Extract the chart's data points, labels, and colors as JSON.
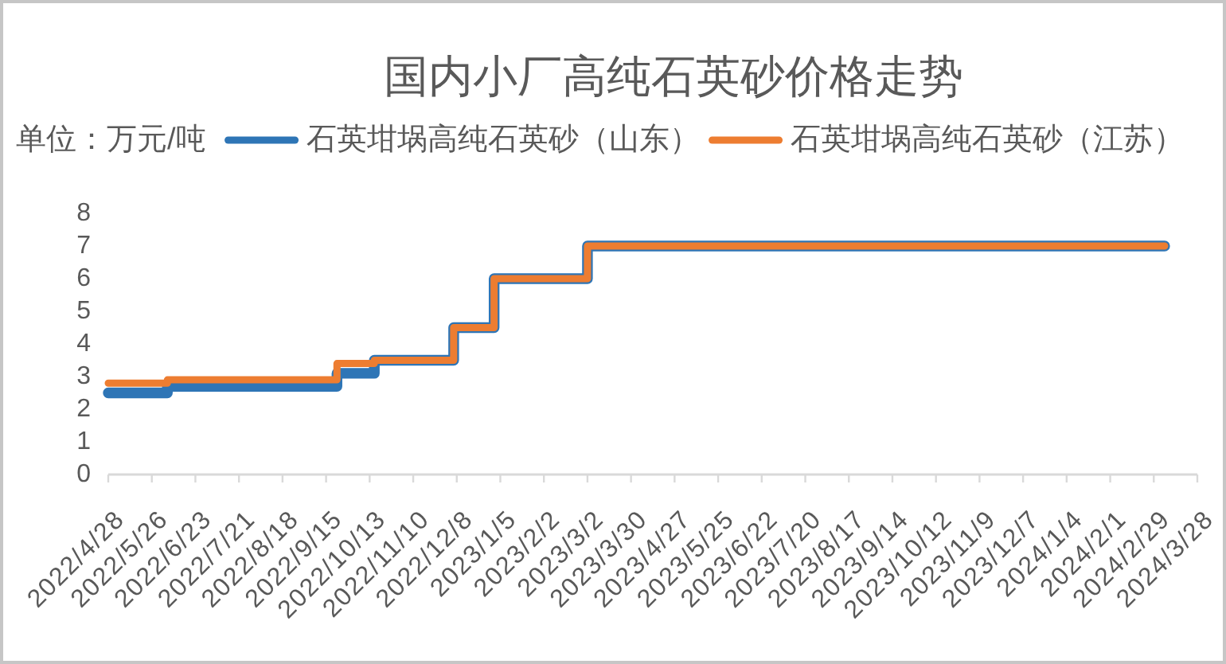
{
  "chart_data": {
    "type": "step",
    "title": "国内小厂高纯石英砂价格走势",
    "ylabel": "单位：万元/吨",
    "legend": "top",
    "x": [
      "2022-04-28",
      "2022-06-05",
      "2022-09-22",
      "2022-10-16",
      "2022-12-06",
      "2023-01-01",
      "2023-03-02",
      "2024-03-07"
    ],
    "series": [
      {
        "name": "石英坩埚高纯石英砂（山东）",
        "color": "#2e75b6",
        "values": [
          2.5,
          2.7,
          3.1,
          3.5,
          4.5,
          6,
          7,
          7
        ]
      },
      {
        "name": "石英坩埚高纯石英砂（江苏）",
        "color": "#ed7d31",
        "values": [
          2.8,
          2.9,
          3.4,
          3.5,
          4.5,
          6,
          7,
          7
        ]
      }
    ],
    "xlim": [
      "2022-04-28",
      "2024-03-28"
    ],
    "xticks": [
      {
        "value": "2022-04-28",
        "label": "2022/4/28"
      },
      {
        "value": "2022-05-26",
        "label": "2022/5/26"
      },
      {
        "value": "2022-06-23",
        "label": "2022/6/23"
      },
      {
        "value": "2022-07-21",
        "label": "2022/7/21"
      },
      {
        "value": "2022-08-18",
        "label": "2022/8/18"
      },
      {
        "value": "2022-09-15",
        "label": "2022/9/15"
      },
      {
        "value": "2022-10-13",
        "label": "2022/10/13"
      },
      {
        "value": "2022-11-10",
        "label": "2022/11/10"
      },
      {
        "value": "2022-12-08",
        "label": "2022/12/8"
      },
      {
        "value": "2023-01-05",
        "label": "2023/1/5"
      },
      {
        "value": "2023-02-02",
        "label": "2023/2/2"
      },
      {
        "value": "2023-03-02",
        "label": "2023/3/2"
      },
      {
        "value": "2023-03-30",
        "label": "2023/3/30"
      },
      {
        "value": "2023-04-27",
        "label": "2023/4/27"
      },
      {
        "value": "2023-05-25",
        "label": "2023/5/25"
      },
      {
        "value": "2023-06-22",
        "label": "2023/6/22"
      },
      {
        "value": "2023-07-20",
        "label": "2023/7/20"
      },
      {
        "value": "2023-08-17",
        "label": "2023/8/17"
      },
      {
        "value": "2023-09-14",
        "label": "2023/9/14"
      },
      {
        "value": "2023-10-12",
        "label": "2023/10/12"
      },
      {
        "value": "2023-11-09",
        "label": "2023/11/9"
      },
      {
        "value": "2023-12-07",
        "label": "2023/12/7"
      },
      {
        "value": "2024-01-04",
        "label": "2024/1/4"
      },
      {
        "value": "2024-02-01",
        "label": "2024/2/1"
      },
      {
        "value": "2024-02-29",
        "label": "2024/2/29"
      },
      {
        "value": "2024-03-28",
        "label": "2024/3/28"
      }
    ],
    "ylim": [
      0,
      8
    ],
    "yticks": [
      0,
      1,
      2,
      3,
      4,
      5,
      6,
      7,
      8
    ]
  }
}
